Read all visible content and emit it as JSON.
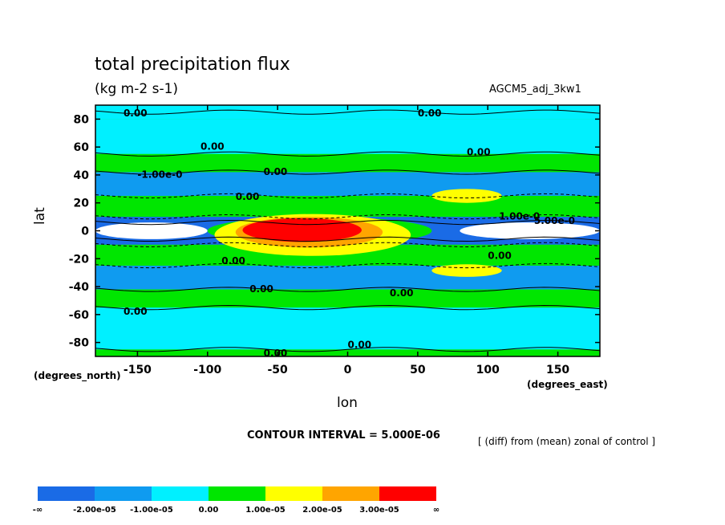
{
  "chart_data": {
    "type": "heatmap",
    "title": "total precipitation flux",
    "units": "(kg m-2 s-1)",
    "run_name": "AGCM5_adj_3kw1",
    "xlabel": "lon",
    "xlabel_units": "(degrees_east)",
    "ylabel": "lat",
    "ylabel_units": "(degrees_north)",
    "xlim": [
      -180,
      180
    ],
    "ylim": [
      -90,
      90
    ],
    "xticks": [
      -150,
      -100,
      -50,
      0,
      50,
      100,
      150
    ],
    "yticks": [
      80,
      60,
      40,
      20,
      0,
      -20,
      -40,
      -60,
      -80
    ],
    "contour_interval": "CONTOUR INTERVAL = 5.000E-06",
    "note": "[ (diff) from (mean) zonal of control ]",
    "contour_labels": [
      "0.00",
      "-1.00e-0",
      "1.00e-0",
      "5.00e-0"
    ],
    "levels": [
      {
        "label": "-∞",
        "color": "#1a6be6"
      },
      {
        "label": "-2.00e-05",
        "color": "#0f9bf0"
      },
      {
        "label": "-1.00e-05",
        "color": "#00f0ff"
      },
      {
        "label": "0.00",
        "color": "#00e600"
      },
      {
        "label": "1.00e-05",
        "color": "#ffff00"
      },
      {
        "label": "2.00e-05",
        "color": "#ffa500"
      },
      {
        "label": "3.00e-05",
        "color": "#ff0000"
      },
      {
        "label": "∞",
        "color": null
      }
    ],
    "zonal_bands": [
      {
        "lat": [
          80,
          90
        ],
        "level": "-1.00e-05"
      },
      {
        "lat": [
          55,
          80
        ],
        "level": "-1.00e-05"
      },
      {
        "lat": [
          42,
          55
        ],
        "level": "0.00"
      },
      {
        "lat": [
          25,
          42
        ],
        "level": "-2.00e-05"
      },
      {
        "lat": [
          10,
          25
        ],
        "level": "0.00"
      },
      {
        "lat": [
          -10,
          10
        ],
        "level": "-∞"
      },
      {
        "lat": [
          -25,
          -10
        ],
        "level": "0.00"
      },
      {
        "lat": [
          -42,
          -25
        ],
        "level": "-2.00e-05"
      },
      {
        "lat": [
          -55,
          -42
        ],
        "level": "0.00"
      },
      {
        "lat": [
          -85,
          -55
        ],
        "level": "-1.00e-05"
      }
    ]
  }
}
